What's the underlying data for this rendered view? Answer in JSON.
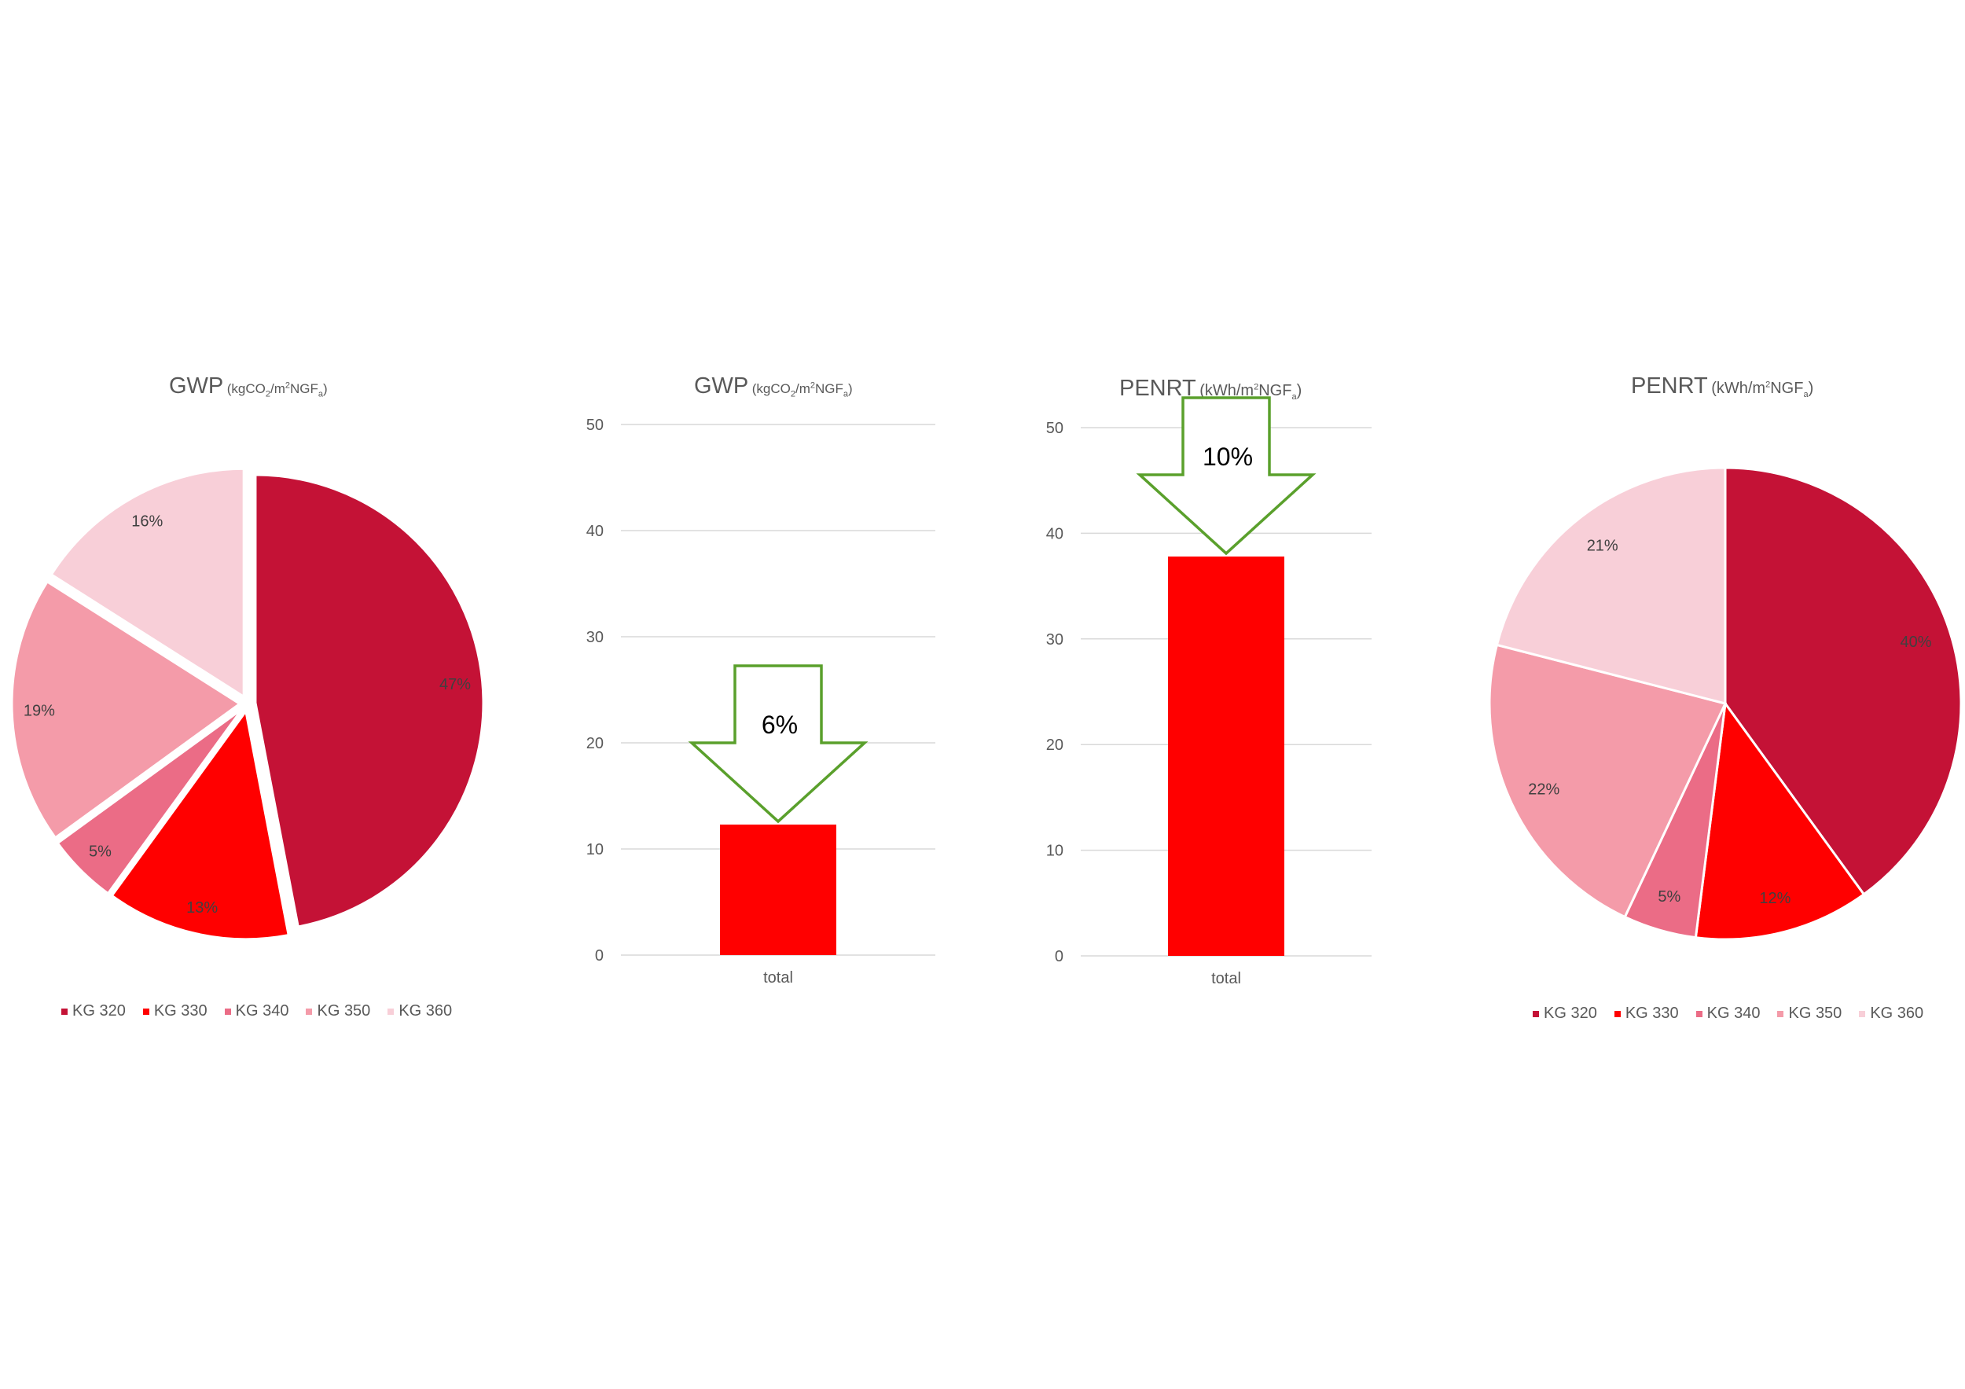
{
  "colors": {
    "kg320": "#C41236",
    "kg330": "#FF0000",
    "kg340": "#EB6C86",
    "kg350": "#F49BA9",
    "kg360": "#F8CFD8",
    "bar": "#FF0000",
    "arrow": "#5AA02C",
    "grid": "#D9D9D9"
  },
  "gwp_pie_title": {
    "main": "GWP",
    "unit_a": "(kgCO",
    "unit_sub": "2",
    "unit_b": "/m",
    "unit_sup": "2",
    "unit_c": "NGF",
    "unit_sub2": "a",
    "unit_d": ")"
  },
  "gwp_bar_title": {
    "main": "GWP",
    "unit_a": "(kgCO",
    "unit_sub": "2",
    "unit_b": "/m",
    "unit_sup": "2",
    "unit_c": "NGF",
    "unit_sub2": "a",
    "unit_d": ")"
  },
  "penrt_bar_title": {
    "main": "PENRT",
    "unit_a": "(kWh/m",
    "unit_sup": "2",
    "unit_c": "NGF",
    "unit_sub2": "a",
    "unit_d": ")"
  },
  "penrt_pie_title": {
    "main": "PENRT",
    "unit_a": "(kWh/m",
    "unit_sup": "2",
    "unit_c": "NGF",
    "unit_sub2": "a",
    "unit_d": ")"
  },
  "legend": [
    "KG 320",
    "KG 330",
    "KG 340",
    "KG 350",
    "KG 360"
  ],
  "chart_data": [
    {
      "type": "pie",
      "title": "GWP (kgCO2/m2NGFa)",
      "categories": [
        "KG 320",
        "KG 330",
        "KG 340",
        "KG 350",
        "KG 360"
      ],
      "values": [
        47,
        13,
        5,
        19,
        16
      ],
      "labels": [
        "47%",
        "13%",
        "5%",
        "19%",
        "16%"
      ],
      "exploded": true,
      "legend_position": "bottom"
    },
    {
      "type": "bar",
      "title": "GWP (kgCO2/m2NGFa)",
      "categories": [
        "total"
      ],
      "values": [
        12.3
      ],
      "ylim": [
        0,
        50
      ],
      "yticks": [
        0,
        10,
        20,
        30,
        40,
        50
      ],
      "grid": true,
      "annotation": "6%"
    },
    {
      "type": "bar",
      "title": "PENRT (kWh/m2NGFa)",
      "categories": [
        "total"
      ],
      "values": [
        37.8
      ],
      "ylim": [
        0,
        50
      ],
      "yticks": [
        0,
        10,
        20,
        30,
        40,
        50
      ],
      "grid": true,
      "annotation": "10%"
    },
    {
      "type": "pie",
      "title": "PENRT (kWh/m2NGFa)",
      "categories": [
        "KG 320",
        "KG 330",
        "KG 340",
        "KG 350",
        "KG 360"
      ],
      "values": [
        40,
        12,
        5,
        22,
        21
      ],
      "labels": [
        "40%",
        "12%",
        "5%",
        "22%",
        "21%"
      ],
      "exploded": false,
      "legend_position": "bottom"
    }
  ]
}
